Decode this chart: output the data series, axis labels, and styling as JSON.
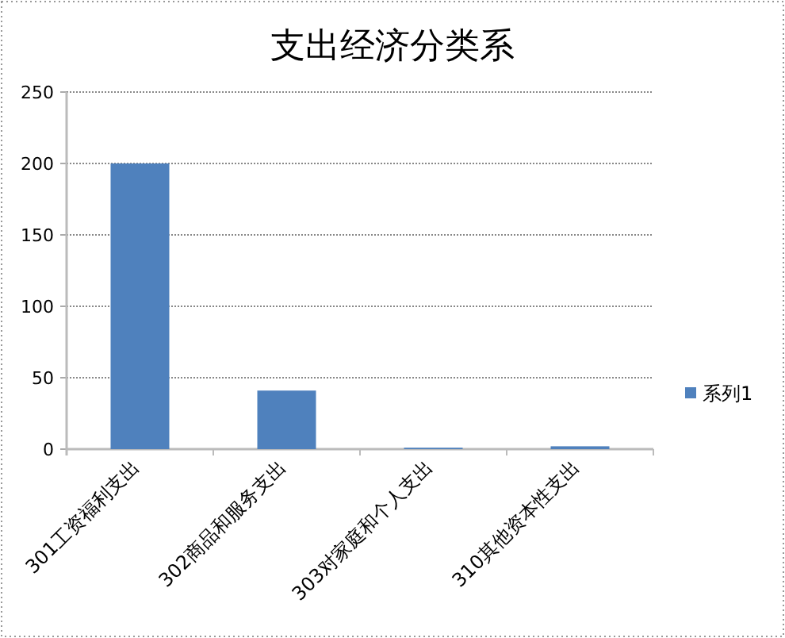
{
  "chart_data": {
    "type": "bar",
    "title": "支出经济分类系",
    "categories": [
      "301工资福利支出",
      "302商品和服务支出",
      "303对家庭和个人支出",
      "310其他资本性支出"
    ],
    "series": [
      {
        "name": "系列1",
        "color": "#4f81bd",
        "values": [
          200,
          41,
          1,
          2
        ]
      }
    ],
    "ylim": [
      0,
      250
    ],
    "yticks": [
      0,
      50,
      100,
      150,
      200,
      250
    ],
    "grid": "y",
    "legend": "right"
  }
}
